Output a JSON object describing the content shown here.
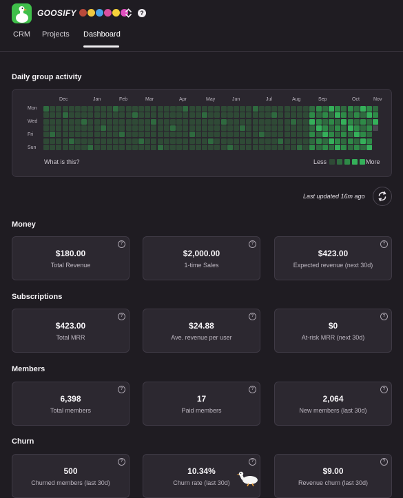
{
  "header": {
    "brand": "GOOSIFY",
    "brand_emoji_colors": [
      "#b84a3a",
      "#f0c840",
      "#4aa3e8",
      "#d94fa0",
      "#f6d23a",
      "#e04fc0"
    ],
    "tabs": [
      {
        "label": "CRM",
        "active": false
      },
      {
        "label": "Projects",
        "active": false
      },
      {
        "label": "Dashboard",
        "active": true
      }
    ],
    "help_glyph": "?",
    "icons": [
      "goose-logo-icon",
      "chevron-updown-icon",
      "help-icon"
    ]
  },
  "activity": {
    "title": "Daily group activity",
    "months": [
      "Dec",
      "Jan",
      "Feb",
      "Mar",
      "Apr",
      "May",
      "Jun",
      "Jul",
      "Aug",
      "Sep",
      "Oct",
      "Nov"
    ],
    "days": [
      "Mon",
      "Wed",
      "Fri",
      "Sun"
    ],
    "what_is_this": "What is this?",
    "legend_less": "Less",
    "legend_more": "More",
    "legend_colors": [
      "#2f4a36",
      "#2f6a3f",
      "#2e8a47",
      "#35b05a"
    ],
    "hot_weeks_from": 42,
    "weeks": 53
  },
  "last_updated": "Last updated 16m ago",
  "sections": [
    {
      "title": "Money",
      "cards": [
        {
          "value": "$180.00",
          "label": "Total Revenue"
        },
        {
          "value": "$2,000.00",
          "label": "1-time Sales"
        },
        {
          "value": "$423.00",
          "label": "Expected revenue (next 30d)"
        }
      ]
    },
    {
      "title": "Subscriptions",
      "cards": [
        {
          "value": "$423.00",
          "label": "Total MRR"
        },
        {
          "value": "$24.88",
          "label": "Ave. revenue per user"
        },
        {
          "value": "$0",
          "label": "At-risk MRR (next 30d)"
        }
      ]
    },
    {
      "title": "Members",
      "cards": [
        {
          "value": "6,398",
          "label": "Total members"
        },
        {
          "value": "17",
          "label": "Paid members"
        },
        {
          "value": "2,064",
          "label": "New members (last 30d)"
        }
      ]
    },
    {
      "title": "Churn",
      "cards": [
        {
          "value": "500",
          "label": "Churned members (last 30d)"
        },
        {
          "value": "10.34%",
          "label": "Churn rate (last 30d)"
        },
        {
          "value": "$9.00",
          "label": "Revenue churn (last 30d)"
        }
      ]
    }
  ]
}
